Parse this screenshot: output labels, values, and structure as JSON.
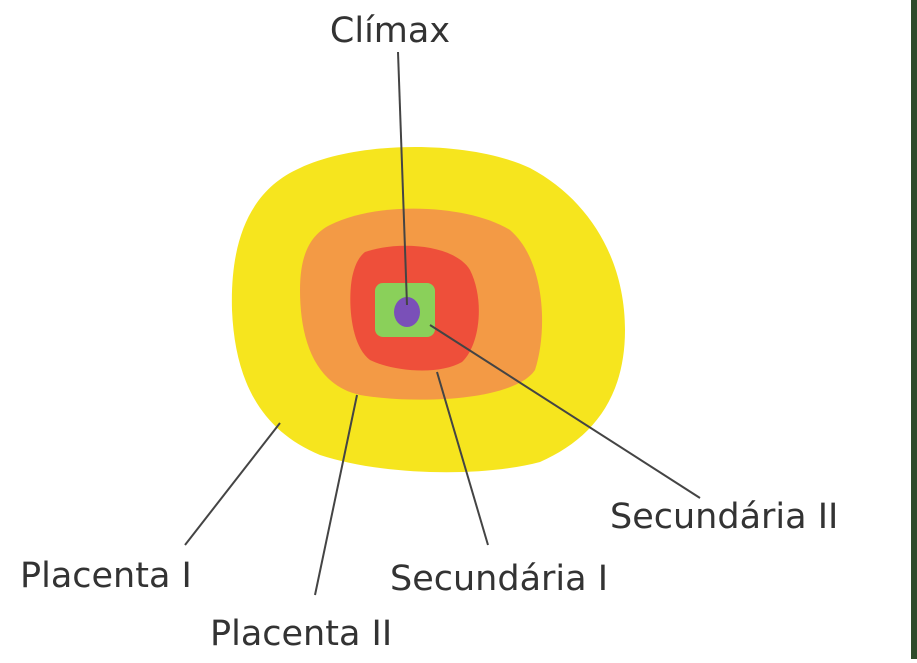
{
  "labels": {
    "climax": "Clímax",
    "secundaria_2": "Secundária II",
    "secundaria_1": "Secundária I",
    "placenta_1": "Placenta I",
    "placenta_2": "Placenta II"
  }
}
